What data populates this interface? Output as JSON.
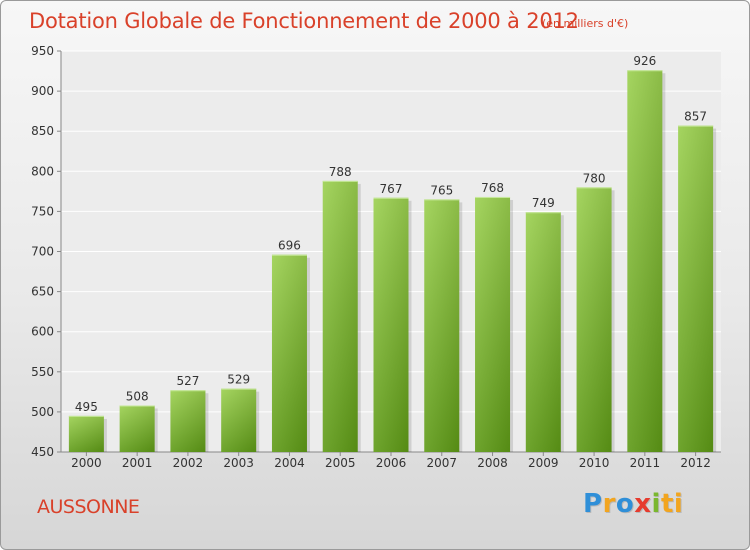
{
  "chart_data": {
    "type": "bar",
    "title": "Dotation Globale de Fonctionnement de 2000 à 2012",
    "subtitle": "(en milliers d'€)",
    "categories": [
      "2000",
      "2001",
      "2002",
      "2003",
      "2004",
      "2005",
      "2006",
      "2007",
      "2008",
      "2009",
      "2010",
      "2011",
      "2012"
    ],
    "values": [
      495,
      508,
      527,
      529,
      696,
      788,
      767,
      765,
      768,
      749,
      780,
      926,
      857
    ],
    "ylim": [
      450,
      950
    ],
    "yticks": [
      450,
      500,
      550,
      600,
      650,
      700,
      750,
      800,
      850,
      900,
      950
    ],
    "grid": true,
    "bar_color": "#7cb833"
  },
  "place_name": "AUSSONNE",
  "logo": {
    "letters": [
      "P",
      "r",
      "o",
      "x",
      "i",
      "ti"
    ]
  }
}
